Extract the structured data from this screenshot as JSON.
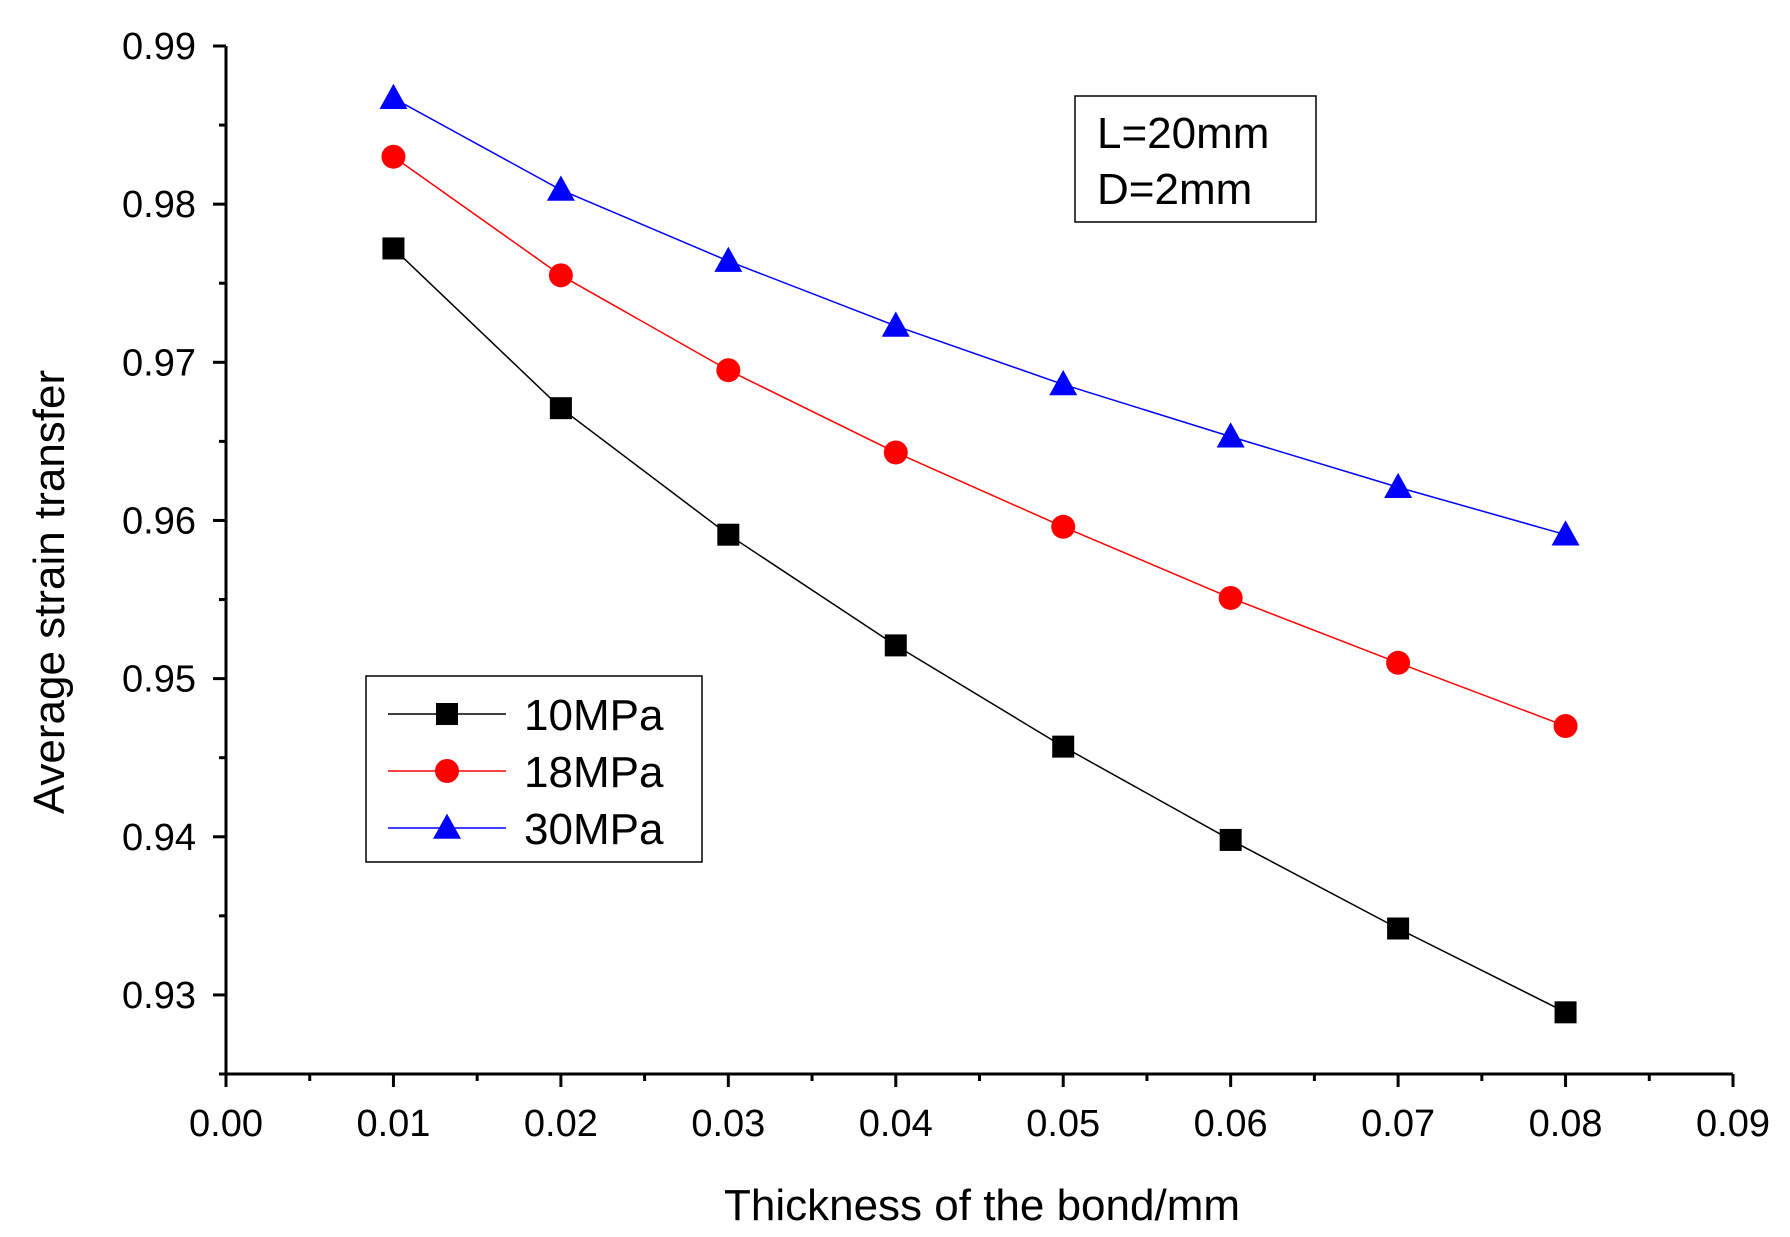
{
  "chart_data": {
    "type": "line",
    "xlabel": "Thickness of the bond/mm",
    "ylabel": "Average strain transfer",
    "xlim": [
      0.0,
      0.09
    ],
    "ylim": [
      0.925,
      0.99
    ],
    "xticks": [
      0.0,
      0.01,
      0.02,
      0.03,
      0.04,
      0.05,
      0.06,
      0.07,
      0.08,
      0.09
    ],
    "xtick_labels": [
      "0.00",
      "0.01",
      "0.02",
      "0.03",
      "0.04",
      "0.05",
      "0.06",
      "0.07",
      "0.08",
      "0.09"
    ],
    "yticks": [
      0.93,
      0.94,
      0.95,
      0.96,
      0.97,
      0.98,
      0.99
    ],
    "ytick_labels": [
      "0.93",
      "0.94",
      "0.95",
      "0.96",
      "0.97",
      "0.98",
      "0.99"
    ],
    "grid": false,
    "legend_position": "left-middle",
    "annotation": {
      "lines": [
        "L=20mm",
        "D=2mm"
      ],
      "position": "top-right"
    },
    "x": [
      0.01,
      0.02,
      0.03,
      0.04,
      0.05,
      0.06,
      0.07,
      0.08
    ],
    "series": [
      {
        "name": "10MPa",
        "color": "#000000",
        "marker": "square",
        "values": [
          0.9772,
          0.9671,
          0.9591,
          0.9521,
          0.9457,
          0.9398,
          0.9342,
          0.9289
        ]
      },
      {
        "name": "18MPa",
        "color": "#ff0000",
        "marker": "circle",
        "values": [
          0.983,
          0.9755,
          0.9695,
          0.9643,
          0.9596,
          0.9551,
          0.951,
          0.947
        ]
      },
      {
        "name": "30MPa",
        "color": "#0000ff",
        "marker": "triangle",
        "values": [
          0.9867,
          0.9809,
          0.9764,
          0.9723,
          0.9686,
          0.9653,
          0.9621,
          0.9591
        ]
      }
    ]
  }
}
